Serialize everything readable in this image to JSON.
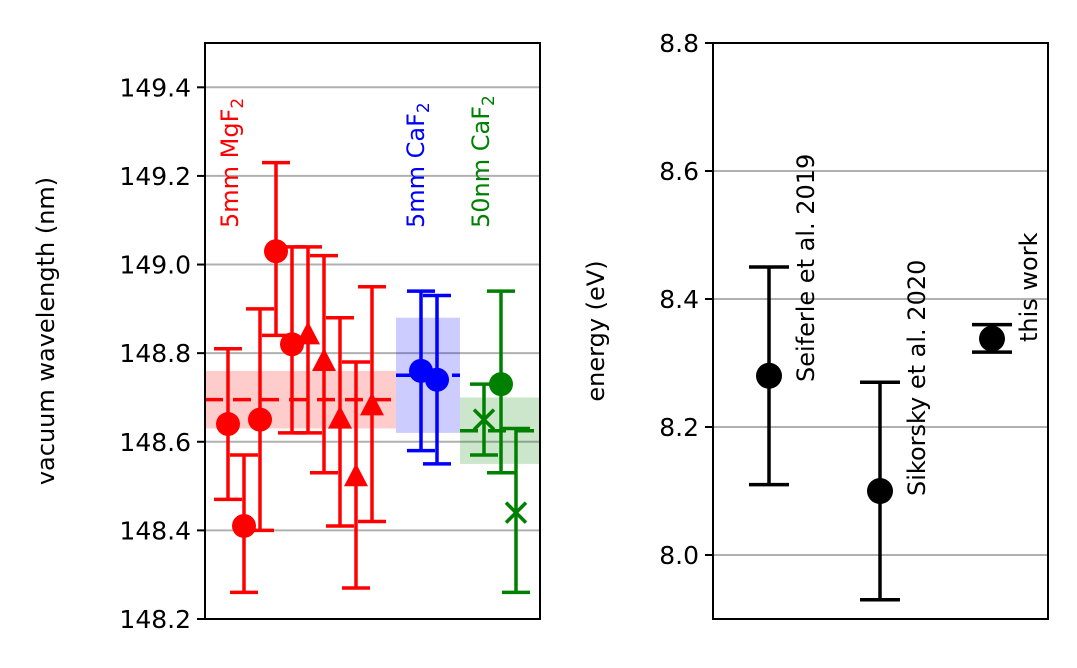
{
  "colors": {
    "mgf2": "#ff0000",
    "caf2_5mm": "#0000ff",
    "caf2_50nm": "#008000",
    "black": "#000000",
    "grid": "#b0b0b0"
  },
  "chart_data": [
    {
      "type": "scatter",
      "ylabel": "vacuum wavelength (nm)",
      "ylim": [
        148.2,
        149.5
      ],
      "yticks": [
        "148.2",
        "148.4",
        "148.6",
        "148.8",
        "149.0",
        "149.2",
        "149.4"
      ],
      "grid": "y",
      "groups": [
        {
          "label_main": "5mm MgF",
          "label_sub": "2",
          "color": "#ff0000",
          "mean_band": {
            "center": 148.695,
            "low": 148.63,
            "high": 148.76
          },
          "points": [
            {
              "marker": "circle",
              "y": 148.64,
              "err_low": 148.47,
              "err_high": 148.81
            },
            {
              "marker": "circle",
              "y": 148.41,
              "err_low": 148.26,
              "err_high": 148.57
            },
            {
              "marker": "circle",
              "y": 148.65,
              "err_low": 148.4,
              "err_high": 148.9
            },
            {
              "marker": "circle",
              "y": 149.03,
              "err_low": 148.84,
              "err_high": 149.23
            },
            {
              "marker": "circle",
              "y": 148.82,
              "err_low": 148.62,
              "err_high": 149.04
            },
            {
              "marker": "triangle",
              "y": 148.84,
              "err_low": 148.62,
              "err_high": 149.04
            },
            {
              "marker": "triangle",
              "y": 148.78,
              "err_low": 148.53,
              "err_high": 149.02
            },
            {
              "marker": "triangle",
              "y": 148.65,
              "err_low": 148.41,
              "err_high": 148.88
            },
            {
              "marker": "triangle",
              "y": 148.52,
              "err_low": 148.27,
              "err_high": 148.78
            },
            {
              "marker": "triangle",
              "y": 148.68,
              "err_low": 148.42,
              "err_high": 148.95
            }
          ]
        },
        {
          "label_main": "5mm CaF",
          "label_sub": "2",
          "color": "#0000ff",
          "mean_band": {
            "center": 148.75,
            "low": 148.62,
            "high": 148.88
          },
          "points": [
            {
              "marker": "circle",
              "y": 148.76,
              "err_low": 148.58,
              "err_high": 148.94
            },
            {
              "marker": "circle",
              "y": 148.74,
              "err_low": 148.55,
              "err_high": 148.93
            }
          ]
        },
        {
          "label_main": "50nm CaF",
          "label_sub": "2",
          "color": "#008000",
          "mean_band": {
            "center": 148.625,
            "low": 148.55,
            "high": 148.7
          },
          "points": [
            {
              "marker": "x",
              "y": 148.65,
              "err_low": 148.57,
              "err_high": 148.73
            },
            {
              "marker": "circle",
              "y": 148.73,
              "err_low": 148.53,
              "err_high": 148.94
            },
            {
              "marker": "x",
              "y": 148.44,
              "err_low": 148.26,
              "err_high": 148.63
            }
          ]
        }
      ]
    },
    {
      "type": "scatter",
      "ylabel": "energy (eV)",
      "ylim": [
        7.9,
        8.8
      ],
      "yticks": [
        "8.0",
        "8.2",
        "8.4",
        "8.6",
        "8.8"
      ],
      "grid": "y",
      "points": [
        {
          "label": "Seiferle et al. 2019",
          "y": 8.28,
          "err_low": 8.11,
          "err_high": 8.45
        },
        {
          "label": "Sikorsky et al. 2020",
          "y": 8.1,
          "err_low": 7.93,
          "err_high": 8.27
        },
        {
          "label": "this work",
          "y": 8.338,
          "err_low": 8.317,
          "err_high": 8.36
        }
      ]
    }
  ]
}
